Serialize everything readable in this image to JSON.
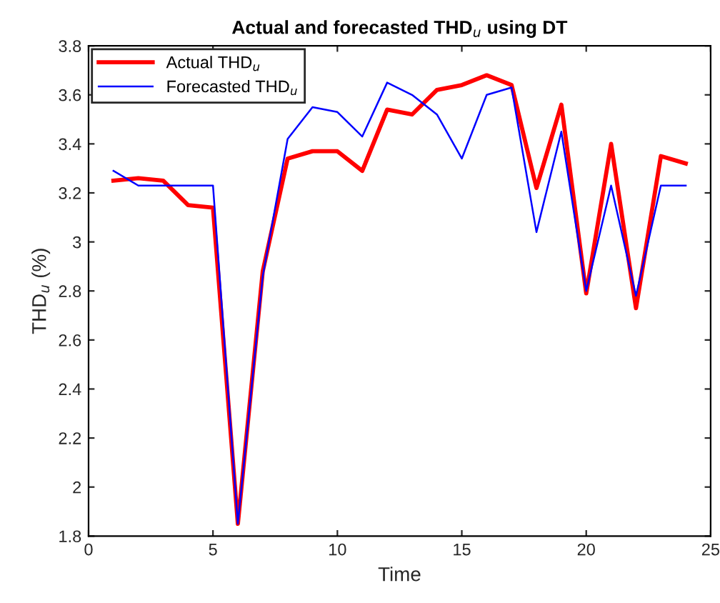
{
  "chart_data": {
    "type": "line",
    "title": "Actual and forecasted THD$_{u}$ using DT",
    "xlabel": "Time",
    "ylabel": "THD$_{u}$ (%)",
    "x": [
      1,
      2,
      3,
      4,
      5,
      6,
      7,
      8,
      9,
      10,
      11,
      12,
      13,
      14,
      15,
      16,
      17,
      18,
      19,
      20,
      21,
      22,
      23,
      24
    ],
    "series": [
      {
        "name": "Actual THD$_{u}$",
        "color": "#ff0000",
        "values": [
          3.25,
          3.26,
          3.25,
          3.15,
          3.14,
          1.85,
          2.88,
          3.34,
          3.37,
          3.37,
          3.29,
          3.54,
          3.52,
          3.62,
          3.64,
          3.68,
          3.64,
          3.22,
          3.56,
          2.79,
          3.4,
          2.73,
          3.35,
          3.32
        ]
      },
      {
        "name": "Forecasted THD$_{u}$",
        "color": "#0000ff",
        "values": [
          3.29,
          3.23,
          3.23,
          3.23,
          3.23,
          1.85,
          2.86,
          3.42,
          3.55,
          3.53,
          3.43,
          3.65,
          3.6,
          3.52,
          3.34,
          3.6,
          3.63,
          3.04,
          3.45,
          2.8,
          3.23,
          2.78,
          3.23,
          3.23
        ]
      }
    ],
    "xlim": [
      0,
      25
    ],
    "xticks": [
      0,
      5,
      10,
      15,
      20,
      25
    ],
    "ylim": [
      1.8,
      3.8
    ],
    "yticks": [
      1.8,
      2,
      2.2,
      2.4,
      2.6,
      2.8,
      3,
      3.2,
      3.4,
      3.6,
      3.8
    ],
    "legend": "top left",
    "grid": false,
    "marker": "none",
    "line_style": "solid"
  }
}
